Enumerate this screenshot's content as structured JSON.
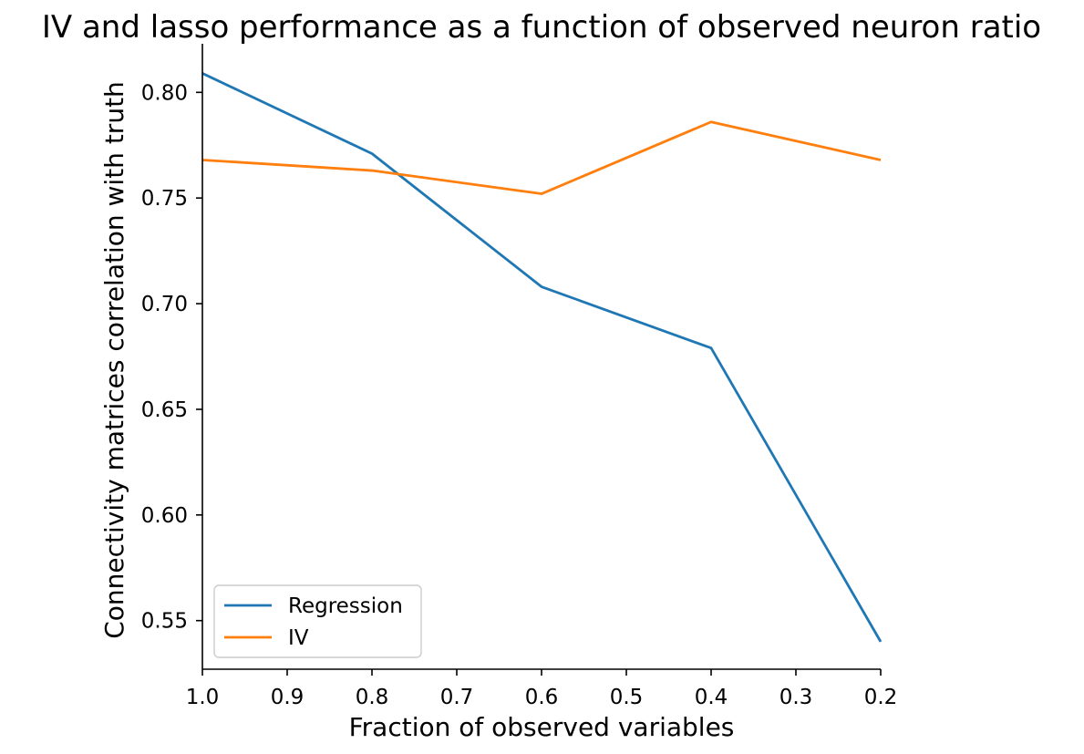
{
  "chart_data": {
    "type": "line",
    "title": "IV and lasso performance as a function of observed neuron ratio",
    "xlabel": "Fraction of observed variables",
    "ylabel": "Connectivity matrices correlation with truth",
    "x": [
      1.0,
      0.8,
      0.6,
      0.4,
      0.2
    ],
    "xlim": [
      1.0,
      0.2
    ],
    "x_reversed": true,
    "ylim": [
      0.527,
      0.823
    ],
    "xticks": [
      1.0,
      0.9,
      0.8,
      0.7,
      0.6,
      0.5,
      0.4,
      0.3,
      0.2
    ],
    "xtick_labels": [
      "1.0",
      "0.9",
      "0.8",
      "0.7",
      "0.6",
      "0.5",
      "0.4",
      "0.3",
      "0.2"
    ],
    "yticks": [
      0.55,
      0.6,
      0.65,
      0.7,
      0.75,
      0.8
    ],
    "ytick_labels": [
      "0.55",
      "0.60",
      "0.65",
      "0.70",
      "0.75",
      "0.80"
    ],
    "grid": false,
    "legend_position": "lower-left",
    "series": [
      {
        "name": "Regression",
        "color": "#1f77b4",
        "values": [
          0.809,
          0.771,
          0.708,
          0.679,
          0.54
        ]
      },
      {
        "name": "IV",
        "color": "#ff7f0e",
        "values": [
          0.768,
          0.763,
          0.752,
          0.786,
          0.768
        ]
      }
    ]
  }
}
